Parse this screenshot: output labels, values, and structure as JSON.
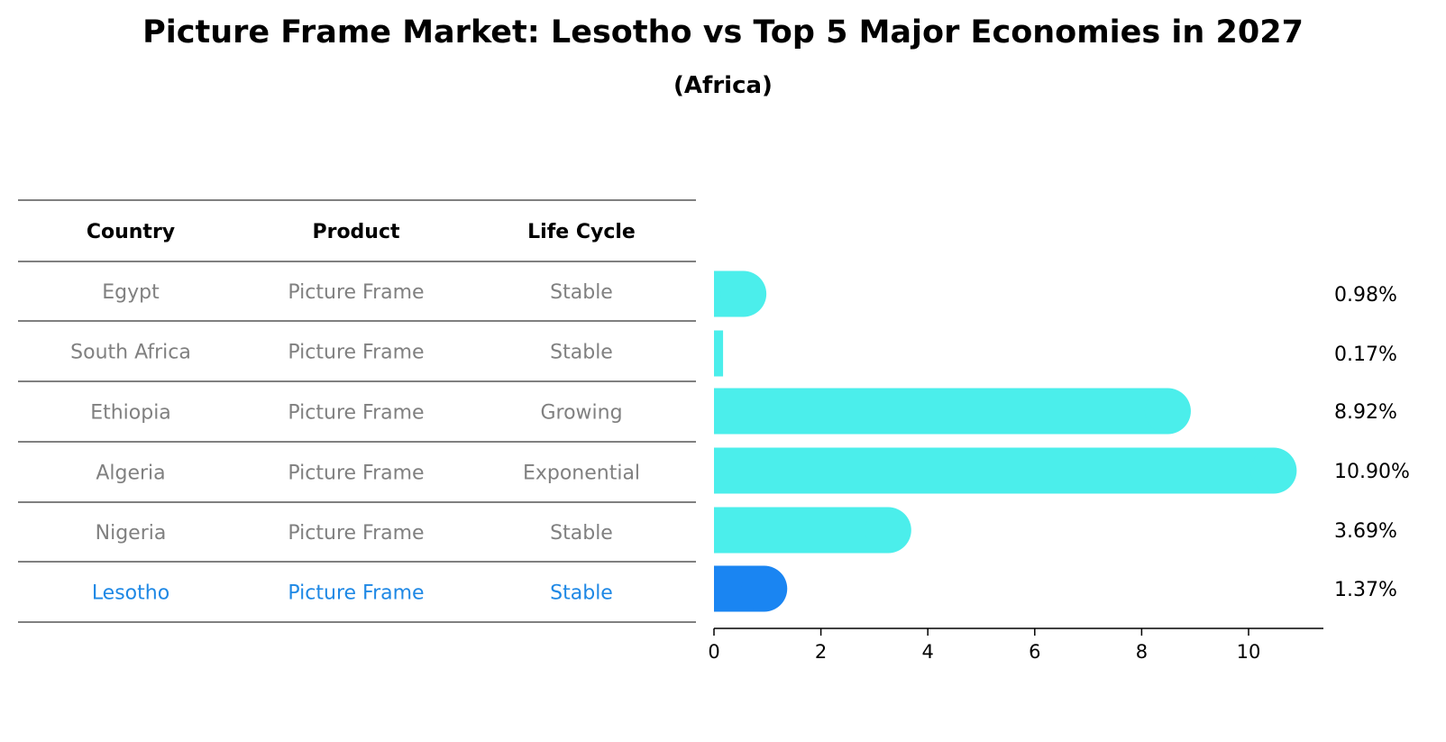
{
  "title": "Picture Frame Market: Lesotho vs Top 5 Major Economies in 2027",
  "subtitle": "(Africa)",
  "colors": {
    "bar": "#4beeeb",
    "highlight": "#1a85f2",
    "muted_text": "#808080",
    "highlight_text": "#1e88e5"
  },
  "table": {
    "headers": [
      "Country",
      "Product",
      "Life Cycle"
    ],
    "rows": [
      [
        "Egypt",
        "Picture Frame",
        "Stable"
      ],
      [
        "South Africa",
        "Picture Frame",
        "Stable"
      ],
      [
        "Ethiopia",
        "Picture Frame",
        "Growing"
      ],
      [
        "Algeria",
        "Picture Frame",
        "Exponential"
      ],
      [
        "Nigeria",
        "Picture Frame",
        "Stable"
      ],
      [
        "Lesotho",
        "Picture Frame",
        "Stable"
      ]
    ],
    "highlight_row": 5
  },
  "chart_data": {
    "type": "bar",
    "orientation": "horizontal",
    "categories": [
      "Egypt",
      "South Africa",
      "Ethiopia",
      "Algeria",
      "Nigeria",
      "Lesotho"
    ],
    "values": [
      0.98,
      0.17,
      8.92,
      10.9,
      3.69,
      1.37
    ],
    "value_labels": [
      "0.98%",
      "0.17%",
      "8.92%",
      "10.90%",
      "3.69%",
      "1.37%"
    ],
    "highlight": "Lesotho",
    "xlim": [
      0,
      11.4
    ],
    "xticks": [
      0,
      2,
      4,
      6,
      8,
      10
    ],
    "grid": false
  }
}
